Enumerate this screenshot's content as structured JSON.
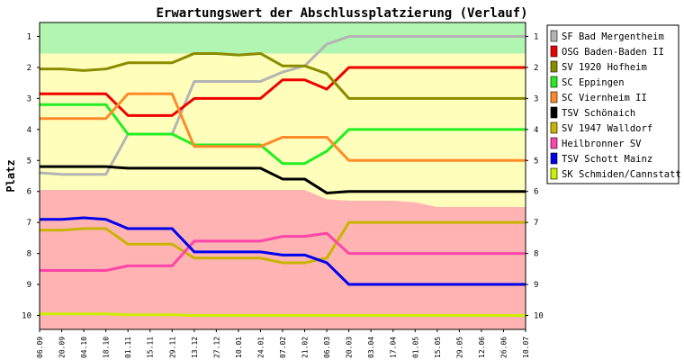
{
  "chart_data": {
    "type": "line",
    "title": "Erwartungswert der Abschlussplatzierung (Verlauf)",
    "ylabel": "Platz",
    "y_ticks": [
      "1",
      "2",
      "3",
      "4",
      "5",
      "6",
      "7",
      "8",
      "9",
      "10"
    ],
    "ylim": [
      0.55,
      10.45
    ],
    "y_inverted": true,
    "legend_position": "right",
    "categories": [
      "06.09",
      "20.09",
      "04.10",
      "18.10",
      "01.11",
      "15.11",
      "29.11",
      "13.12",
      "27.12",
      "10.01",
      "24.01",
      "07.02",
      "21.02",
      "06.03",
      "20.03",
      "03.04",
      "17.04",
      "01.05",
      "15.05",
      "29.05",
      "12.06",
      "26.06",
      "10.07"
    ],
    "zones": [
      {
        "name": "promotion",
        "color": "#b0f5b0",
        "upper": [
          1.55,
          1.55,
          1.55,
          1.55,
          1.55,
          1.55,
          1.55,
          1.55,
          1.55,
          1.55,
          1.55,
          1.55,
          1.55,
          1.55,
          1.55,
          1.55,
          1.55,
          1.55,
          1.55,
          1.55,
          1.55,
          1.55,
          1.55
        ]
      },
      {
        "name": "midfield",
        "color": "#ffffbb",
        "upper": [
          5.95,
          5.95,
          5.95,
          5.95,
          5.95,
          5.95,
          5.95,
          5.95,
          5.95,
          5.95,
          5.95,
          5.95,
          5.95,
          6.25,
          6.3,
          6.3,
          6.3,
          6.35,
          6.5,
          6.5,
          6.5,
          6.5,
          6.5
        ]
      },
      {
        "name": "relegation",
        "color": "#ffb3b3",
        "upper": [
          10.45,
          10.45,
          10.45,
          10.45,
          10.45,
          10.45,
          10.45,
          10.45,
          10.45,
          10.45,
          10.45,
          10.45,
          10.45,
          10.45,
          10.45,
          10.45,
          10.45,
          10.45,
          10.45,
          10.45,
          10.45,
          10.45,
          10.45
        ]
      }
    ],
    "series": [
      {
        "name": "SF Bad Mergentheim",
        "color": "#b4b4b4",
        "values": [
          5.4,
          5.45,
          5.45,
          5.45,
          4.15,
          4.15,
          4.15,
          2.45,
          2.45,
          2.45,
          2.45,
          2.15,
          1.95,
          1.25,
          1.0,
          1.0,
          1.0,
          1.0,
          1.0,
          1.0,
          1.0,
          1.0,
          1.0
        ]
      },
      {
        "name": "OSG Baden-Baden II",
        "color": "#ee0000",
        "values": [
          2.85,
          2.85,
          2.85,
          2.85,
          3.55,
          3.55,
          3.55,
          3.0,
          3.0,
          3.0,
          3.0,
          2.4,
          2.4,
          2.7,
          2.0,
          2.0,
          2.0,
          2.0,
          2.0,
          2.0,
          2.0,
          2.0,
          2.0
        ]
      },
      {
        "name": "SV 1920 Hofheim",
        "color": "#8b8b00",
        "values": [
          2.05,
          2.05,
          2.1,
          2.05,
          1.85,
          1.85,
          1.85,
          1.55,
          1.55,
          1.6,
          1.55,
          1.95,
          1.95,
          2.2,
          3.0,
          3.0,
          3.0,
          3.0,
          3.0,
          3.0,
          3.0,
          3.0,
          3.0
        ]
      },
      {
        "name": "SC Eppingen",
        "color": "#22ee22",
        "values": [
          3.2,
          3.2,
          3.2,
          3.2,
          4.15,
          4.15,
          4.15,
          4.5,
          4.5,
          4.5,
          4.5,
          5.1,
          5.1,
          4.7,
          4.0,
          4.0,
          4.0,
          4.0,
          4.0,
          4.0,
          4.0,
          4.0,
          4.0
        ]
      },
      {
        "name": "SC Viernheim II",
        "color": "#ff8a2a",
        "values": [
          3.65,
          3.65,
          3.65,
          3.65,
          2.85,
          2.85,
          2.85,
          4.55,
          4.55,
          4.55,
          4.55,
          4.25,
          4.25,
          4.25,
          5.0,
          5.0,
          5.0,
          5.0,
          5.0,
          5.0,
          5.0,
          5.0,
          5.0
        ]
      },
      {
        "name": "TSV Schönaich",
        "color": "#000000",
        "values": [
          5.2,
          5.2,
          5.2,
          5.2,
          5.25,
          5.25,
          5.25,
          5.25,
          5.25,
          5.25,
          5.25,
          5.6,
          5.6,
          6.05,
          6.0,
          6.0,
          6.0,
          6.0,
          6.0,
          6.0,
          6.0,
          6.0,
          6.0
        ]
      },
      {
        "name": "SV 1947 Walldorf",
        "color": "#c8b400",
        "values": [
          7.25,
          7.25,
          7.2,
          7.2,
          7.7,
          7.7,
          7.7,
          8.15,
          8.15,
          8.15,
          8.15,
          8.3,
          8.3,
          8.15,
          7.0,
          7.0,
          7.0,
          7.0,
          7.0,
          7.0,
          7.0,
          7.0,
          7.0
        ]
      },
      {
        "name": "Heilbronner SV",
        "color": "#ff44aa",
        "values": [
          8.55,
          8.55,
          8.55,
          8.55,
          8.4,
          8.4,
          8.4,
          7.6,
          7.6,
          7.6,
          7.6,
          7.45,
          7.45,
          7.35,
          8.0,
          8.0,
          8.0,
          8.0,
          8.0,
          8.0,
          8.0,
          8.0,
          8.0
        ]
      },
      {
        "name": "TSV Schott Mainz",
        "color": "#0000ee",
        "values": [
          6.9,
          6.9,
          6.85,
          6.9,
          7.2,
          7.2,
          7.2,
          7.95,
          7.95,
          7.95,
          7.95,
          8.05,
          8.05,
          8.3,
          9.0,
          9.0,
          9.0,
          9.0,
          9.0,
          9.0,
          9.0,
          9.0,
          9.0
        ]
      },
      {
        "name": "SK Schmiden/Cannstatt",
        "color": "#ccee00",
        "values": [
          9.95,
          9.95,
          9.95,
          9.95,
          9.98,
          9.98,
          9.98,
          10.0,
          10.0,
          10.0,
          10.0,
          10.0,
          10.0,
          10.0,
          10.0,
          10.0,
          10.0,
          10.0,
          10.0,
          10.0,
          10.0,
          10.0,
          10.0
        ]
      }
    ]
  }
}
